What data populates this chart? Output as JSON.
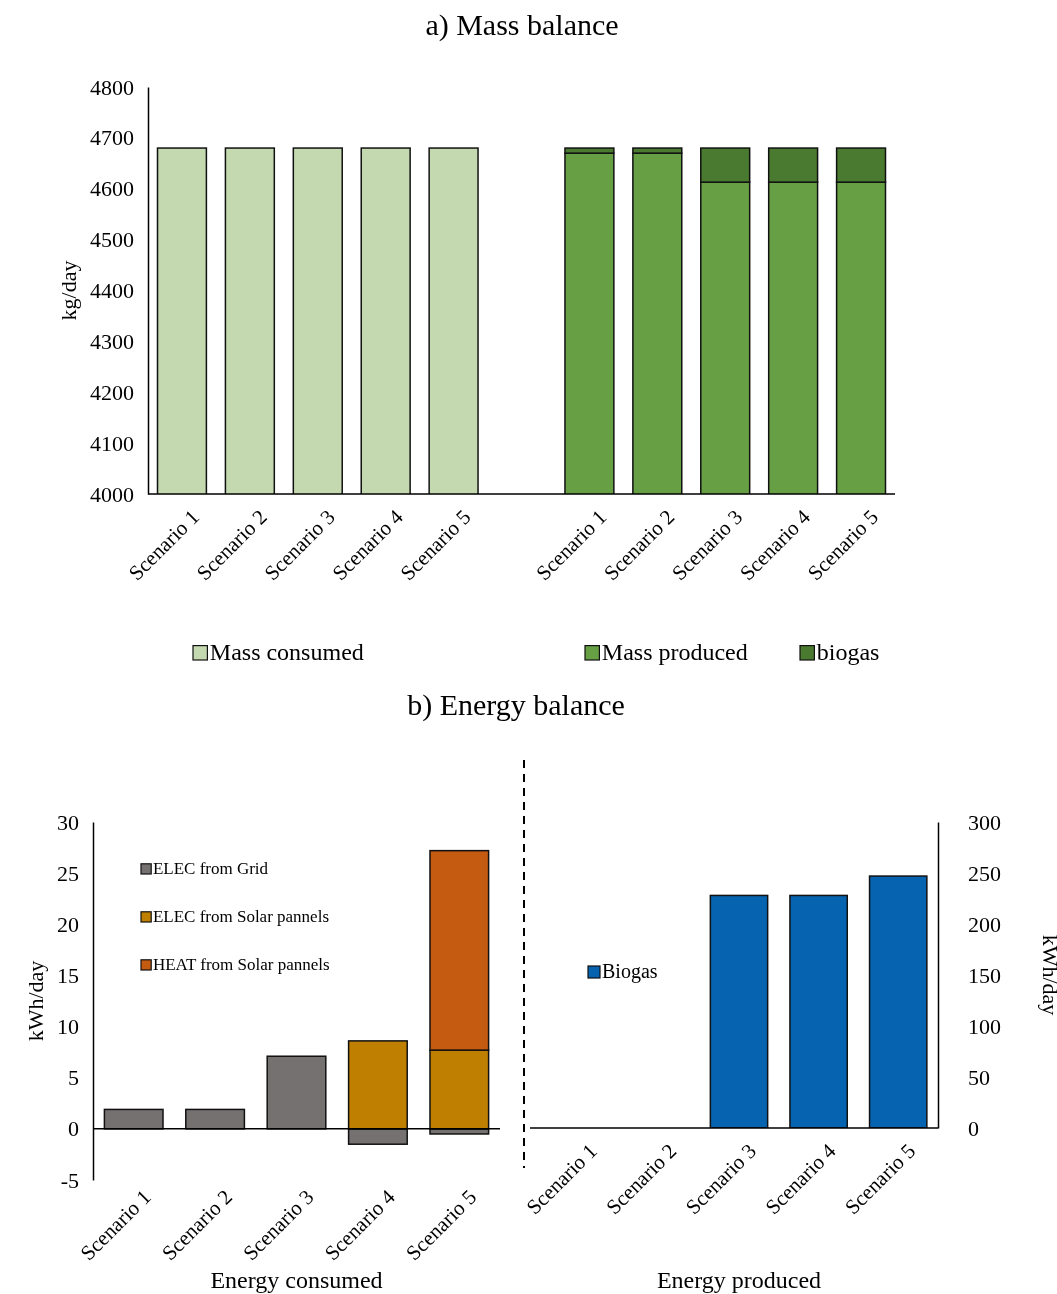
{
  "chart_data": [
    {
      "type": "bar",
      "title": "a) Mass balance",
      "ylabel": "kg/day",
      "legend": "bottom",
      "categories": [
        "Scenario 1",
        "Scenario 2",
        "Scenario 3",
        "Scenario 4",
        "Scenario 5",
        null,
        "Scenario 1",
        "Scenario 2",
        "Scenario 3",
        "Scenario 4",
        "Scenario 5"
      ],
      "ylim": [
        4000,
        4800
      ],
      "yticks": [
        4000,
        4100,
        4200,
        4300,
        4400,
        4500,
        4600,
        4700,
        4800
      ],
      "series": [
        {
          "name": "Mass consumed",
          "color": "#c5d9b1",
          "values": [
            4680,
            4680,
            4680,
            4680,
            4680,
            null,
            null,
            null,
            null,
            null,
            null
          ]
        },
        {
          "name": "Mass produced",
          "color": "#67a044",
          "values": [
            null,
            null,
            null,
            null,
            null,
            null,
            4670,
            4670,
            4613,
            4613,
            4613
          ]
        },
        {
          "name": "biogas",
          "color": "#4a7a2f",
          "values": [
            null,
            null,
            null,
            null,
            null,
            null,
            10,
            10,
            67,
            67,
            67
          ],
          "base": [
            null,
            null,
            null,
            null,
            null,
            null,
            4670,
            4670,
            4613,
            4613,
            4613
          ]
        }
      ]
    },
    {
      "type": "bar",
      "title": "b) Energy balance",
      "ylabel": "kWh/day",
      "xlabel": "Energy consumed",
      "stacked": true,
      "legend": "top left",
      "categories": [
        "Scenario 1",
        "Scenario 2",
        "Scenario 3",
        "Scenario 4",
        "Scenario 5"
      ],
      "ylim": [
        -5,
        30
      ],
      "yticks": [
        -5,
        0,
        5,
        10,
        15,
        20,
        25,
        30
      ],
      "series": [
        {
          "name": "ELEC from Grid",
          "color": "#767171",
          "values": [
            1.9,
            1.9,
            7.1,
            -1.5,
            -0.5
          ]
        },
        {
          "name": "ELEC from Solar pannels",
          "color": "#bf7f00",
          "values": [
            null,
            null,
            null,
            8.6,
            7.7
          ]
        },
        {
          "name": "HEAT from Solar pannels",
          "color": "#c55a11",
          "values": [
            null,
            null,
            null,
            null,
            19.5
          ]
        }
      ]
    },
    {
      "type": "bar",
      "y2label": "kWh/day",
      "xlabel": "Energy produced",
      "legend": "left",
      "categories": [
        "Scenario 1",
        "Scenario 2",
        "Scenario 3",
        "Scenario 4",
        "Scenario 5"
      ],
      "y2lim": [
        0,
        300
      ],
      "y2ticks": [
        0,
        50,
        100,
        150,
        200,
        250,
        300
      ],
      "series": [
        {
          "name": "Biogas",
          "color": "#0563b0",
          "axis": "y2",
          "values": [
            0,
            0,
            228,
            228,
            247
          ]
        }
      ]
    }
  ]
}
